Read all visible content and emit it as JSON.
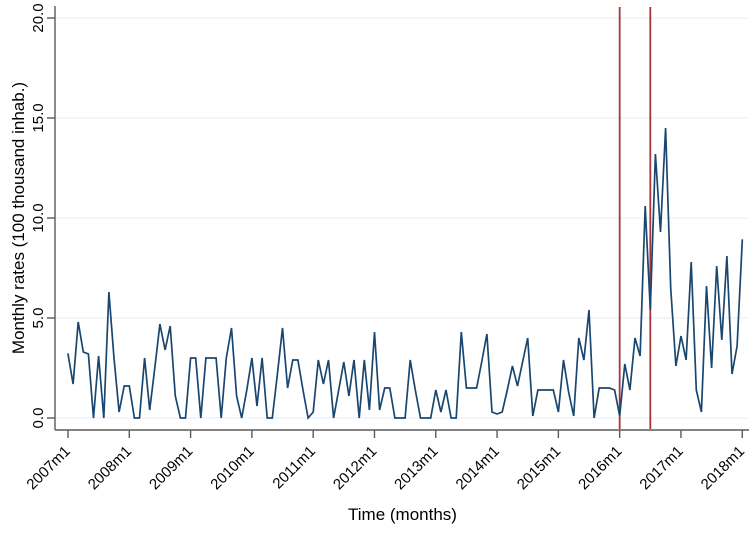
{
  "chart_data": {
    "type": "line",
    "title": "",
    "xlabel": "Time (months)",
    "ylabel": "Monthly rates (100 thousand inhab.)",
    "frequency": "monthly",
    "x_start": "2007m1",
    "x_end": "2018m1",
    "x_tick_labels": [
      "2007m1",
      "2008m1",
      "2009m1",
      "2010m1",
      "2011m1",
      "2012m1",
      "2013m1",
      "2014m1",
      "2015m1",
      "2016m1",
      "2017m1",
      "2018m1"
    ],
    "y_tick_labels": [
      "0.0",
      "5.0",
      "10.0",
      "15.0",
      "20.0"
    ],
    "y_ticks": [
      0,
      5,
      10,
      15,
      20
    ],
    "ylim": [
      0,
      20.6
    ],
    "grid": true,
    "legend": "none",
    "series": [
      {
        "name": "monthly-rate",
        "color": "#1a476f",
        "values": [
          3.2,
          1.7,
          4.8,
          3.3,
          3.2,
          0,
          3.1,
          0,
          6.3,
          3.0,
          0.3,
          1.6,
          1.6,
          0,
          0,
          3.0,
          0.4,
          2.5,
          4.7,
          3.4,
          4.6,
          1.1,
          0,
          0,
          3.0,
          3.0,
          0,
          3.0,
          3.0,
          3.0,
          0,
          3.0,
          4.5,
          1.1,
          0,
          1.4,
          3.0,
          0.6,
          3.0,
          0,
          0,
          2.2,
          4.5,
          1.5,
          2.9,
          2.9,
          1.4,
          0,
          0.3,
          2.9,
          1.7,
          2.9,
          0,
          1.4,
          2.8,
          1.1,
          2.9,
          0,
          2.9,
          0.4,
          4.3,
          0.4,
          1.5,
          1.5,
          0,
          0,
          0,
          2.9,
          1.4,
          0,
          0,
          0,
          1.4,
          0.3,
          1.4,
          0,
          0,
          4.3,
          1.5,
          1.5,
          1.5,
          2.8,
          4.2,
          0.3,
          0.2,
          0.3,
          1.4,
          2.6,
          1.6,
          2.8,
          4.0,
          0.1,
          1.4,
          1.4,
          1.4,
          1.4,
          0.3,
          2.9,
          1.3,
          0.1,
          4.0,
          2.9,
          5.4,
          0,
          1.5,
          1.5,
          1.5,
          1.4,
          0.1,
          2.7,
          1.4,
          4.0,
          3.1,
          10.6,
          5.4,
          13.2,
          9.3,
          14.5,
          6.5,
          2.6,
          4.1,
          2.9,
          7.8,
          1.4,
          0.3,
          6.6,
          2.5,
          7.6,
          3.9,
          8.1,
          2.2,
          3.6,
          8.9
        ]
      }
    ],
    "reference_lines": {
      "x": [
        "2016m1",
        "2016m7"
      ],
      "color": "#a8353c"
    }
  },
  "colors": {
    "line": "#1a476f",
    "reference": "#a8353c",
    "axis": "#5a5a5a",
    "grid": "#e6eef4",
    "text": "#000000",
    "background": "#ffffff"
  }
}
